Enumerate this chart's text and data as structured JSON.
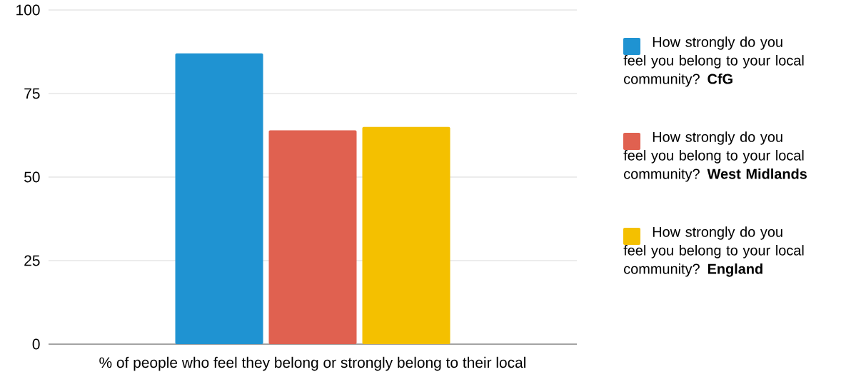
{
  "chart_data": {
    "type": "bar",
    "xlabel": "% of people who feel they belong or strongly belong to their local",
    "categories": [
      null
    ],
    "series": [
      {
        "name": "How strongly do you feel you belong to your local community? **CfG**",
        "color": "#1f93d2",
        "values": [
          87
        ]
      },
      {
        "name": "How strongly do you feel you belong to your local community? **West Midlands**",
        "color": "#e06150",
        "values": [
          64
        ]
      },
      {
        "name": "How strongly do you feel you belong to your local community? **England**",
        "color": "#f4c000",
        "values": [
          65
        ]
      }
    ],
    "ylim": [
      0,
      100
    ],
    "yticks": [
      0,
      25,
      50,
      75,
      100
    ],
    "grid": "y",
    "legend": "right"
  }
}
